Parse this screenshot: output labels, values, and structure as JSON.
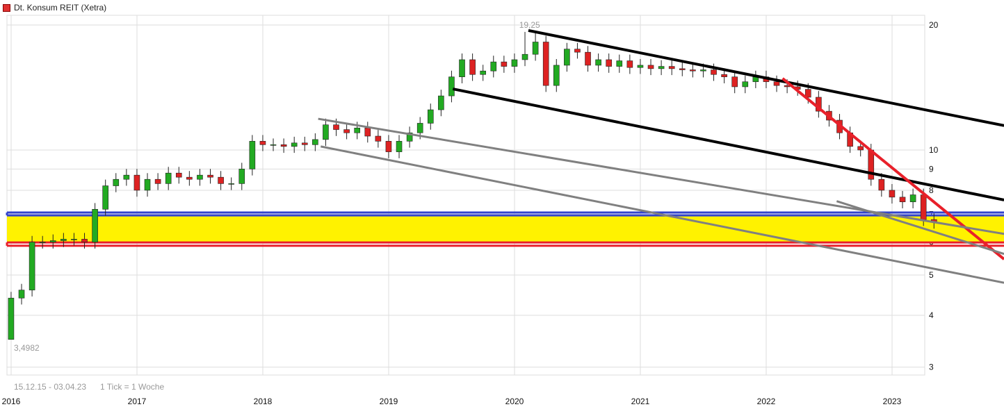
{
  "header": {
    "title": "Dt. Konsum REIT (Xetra)",
    "color": "#e03030"
  },
  "footer": {
    "range": "15.12.15 - 03.04.23",
    "tick": "1 Tick = 1 Woche"
  },
  "chart_data": {
    "type": "candlestick",
    "title": "Dt. Konsum REIT (Xetra)",
    "y_scale": "log",
    "ylim": [
      2.6,
      21
    ],
    "y_ticks": [
      3,
      4,
      5,
      6,
      7,
      8,
      9,
      10,
      20
    ],
    "x_ticks": [
      "2016",
      "2017",
      "2018",
      "2019",
      "2020",
      "2021",
      "2022",
      "2023"
    ],
    "grid": true,
    "start_month": "2015-12",
    "first_open": 3.4982,
    "close": [
      4.4,
      4.6,
      6.0,
      6.0,
      6.05,
      6.1,
      6.1,
      6.0,
      7.2,
      8.2,
      8.5,
      8.7,
      8.0,
      8.5,
      8.3,
      8.8,
      8.6,
      8.5,
      8.7,
      8.6,
      8.3,
      8.3,
      9.0,
      10.5,
      10.3,
      10.3,
      10.2,
      10.4,
      10.3,
      10.6,
      11.5,
      11.2,
      11.0,
      11.3,
      10.8,
      10.5,
      9.9,
      10.5,
      11.0,
      11.6,
      12.5,
      13.5,
      15.0,
      16.5,
      15.2,
      15.5,
      16.3,
      15.9,
      16.5,
      17.0,
      18.2,
      14.3,
      16.0,
      17.5,
      17.2,
      16.0,
      16.5,
      15.9,
      16.4,
      15.8,
      16.0,
      15.7,
      15.9,
      15.7,
      15.6,
      15.5,
      15.6,
      15.2,
      15.0,
      14.2,
      14.6,
      15.0,
      14.6,
      14.3,
      14.2,
      14.0,
      13.4,
      12.4,
      11.8,
      11.0,
      10.2,
      10.0,
      8.5,
      8.0,
      7.7,
      7.5,
      7.8,
      6.8,
      6.7
    ],
    "annotations": {
      "max_label": "19,25",
      "max_value": 19.25,
      "max_date": 2020.12,
      "min_label": "3,4982",
      "min_value": 3.4982
    },
    "up_color": "#22aa22",
    "down_color": "#dd2222",
    "trendlines": [
      {
        "color": "#000000",
        "from": [
          2020.11,
          19.4
        ],
        "to": [
          2023.89,
          11.45
        ]
      },
      {
        "color": "#000000",
        "from": [
          2019.51,
          14.03
        ],
        "to": [
          2023.89,
          7.58
        ]
      },
      {
        "color": "#e8202a",
        "from": [
          2022.13,
          14.87
        ],
        "to": [
          2023.89,
          5.46
        ]
      },
      {
        "color": "#808080",
        "from": [
          2018.44,
          11.89
        ],
        "to": [
          2023.89,
          6.28
        ]
      },
      {
        "color": "#808080",
        "from": [
          2018.46,
          10.2
        ],
        "to": [
          2023.89,
          4.79
        ]
      },
      {
        "color": "#808080",
        "from": [
          2022.56,
          7.53
        ],
        "to": [
          2023.89,
          5.62
        ]
      }
    ],
    "zone": {
      "top": 6.96,
      "bottom": 5.99,
      "fill": "#fff200",
      "top_line": 7.07,
      "top_color": "#3344cc",
      "bottom_line": 5.88,
      "bottom_color": "#e8202a"
    }
  }
}
